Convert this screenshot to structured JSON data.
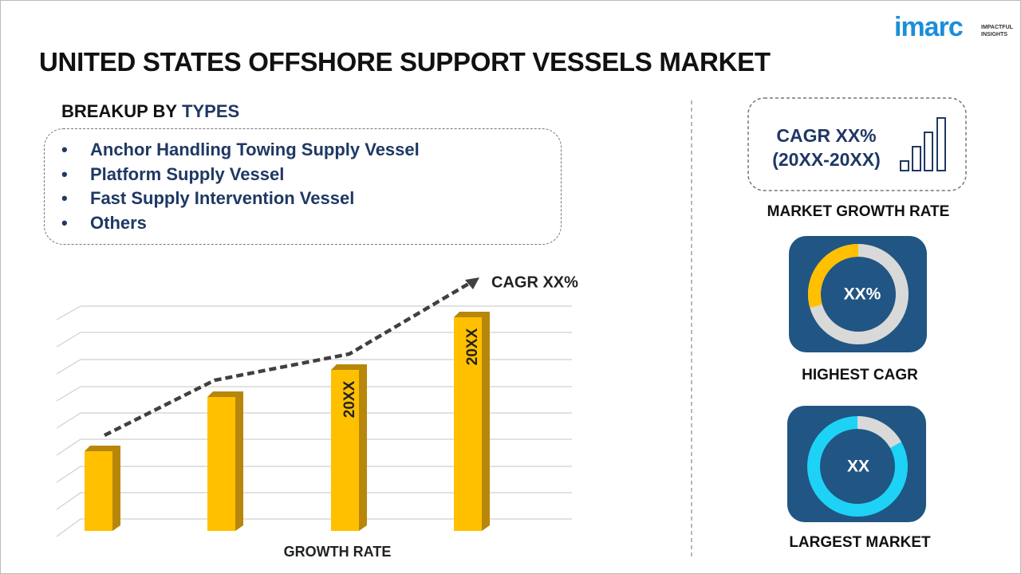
{
  "header": {
    "title": "UNITED STATES OFFSHORE SUPPORT VESSELS MARKET",
    "logo": "imarc",
    "logo_tagline": [
      "IMPACTFUL",
      "INSIGHTS"
    ]
  },
  "breakup": {
    "heading": "BREAKUP BY",
    "heading_emphasis": "TYPES",
    "items": [
      "Anchor Handling Towing Supply Vessel",
      "Platform Supply Vessel",
      "Fast Supply Intervention Vessel",
      "Others"
    ]
  },
  "growth_chart": {
    "cagr_label": "CAGR XX%",
    "bar_labels": [
      "20XX",
      "20XX"
    ],
    "axis_label": "GROWTH RATE"
  },
  "side": {
    "cagr_lines": [
      "CAGR XX%",
      "(20XX-20XX)"
    ],
    "cagr_caption": "MARKET GROWTH RATE",
    "highest_value": "XX%",
    "highest_caption": "HIGHEST CAGR",
    "largest_value": "XX",
    "largest_caption": "LARGEST MARKET"
  }
}
